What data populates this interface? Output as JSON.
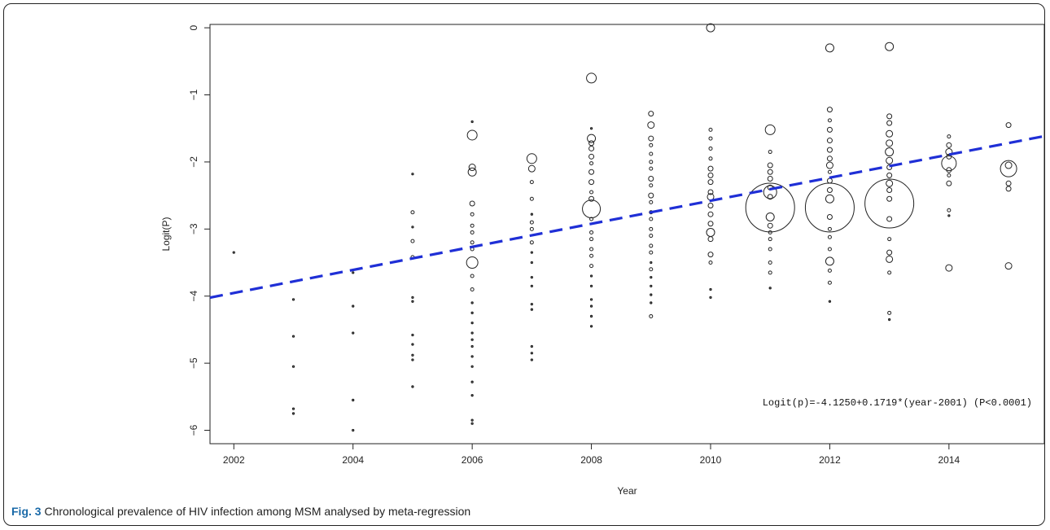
{
  "caption": {
    "label": "Fig. 3",
    "text": "Chronological prevalence of HIV infection among MSM analysed by meta-regression"
  },
  "chart_data": {
    "type": "scatter",
    "title": "",
    "xlabel": "Year",
    "ylabel": "Logit(P)",
    "xlim": [
      2001.6,
      2015.6
    ],
    "ylim": [
      -6.2,
      0.05
    ],
    "x_ticks": [
      2002,
      2004,
      2006,
      2008,
      2010,
      2012,
      2014
    ],
    "y_ticks": [
      0,
      -1,
      -2,
      -3,
      -4,
      -5,
      -6
    ],
    "grid": false,
    "regression": {
      "intercept": -4.125,
      "slope": 0.1719,
      "x_offset": 2001,
      "color": "#1f2fd6",
      "style": "dashed",
      "label": "Logit(p)=-4.1250+0.1719*(year-2001) (P<0.0001)"
    },
    "points": [
      {
        "year": 2002,
        "values": [
          -3.35
        ],
        "sizes": [
          1
        ]
      },
      {
        "year": 2003,
        "values": [
          -4.05,
          -4.6,
          -5.05,
          -5.68,
          -5.75
        ],
        "sizes": [
          1,
          1,
          1,
          1,
          1
        ]
      },
      {
        "year": 2004,
        "values": [
          -3.65,
          -4.15,
          -4.55,
          -5.55,
          -6.0
        ],
        "sizes": [
          1,
          1,
          1,
          1,
          1
        ]
      },
      {
        "year": 2005,
        "values": [
          -2.18,
          -2.75,
          -2.97,
          -3.18,
          -3.42,
          -4.02,
          -4.08,
          -4.58,
          -4.72,
          -4.88,
          -4.95,
          -5.35
        ],
        "sizes": [
          1,
          2,
          1,
          2,
          2,
          1,
          1,
          1,
          1,
          1,
          1,
          1
        ]
      },
      {
        "year": 2006,
        "values": [
          -1.4,
          -1.6,
          -2.08,
          -2.15,
          -2.62,
          -2.78,
          -2.95,
          -3.05,
          -3.2,
          -3.3,
          -3.5,
          -3.7,
          -3.9,
          -4.1,
          -4.25,
          -4.4,
          -4.55,
          -4.65,
          -4.75,
          -4.9,
          -5.05,
          -5.28,
          -5.48,
          -5.85,
          -5.9
        ],
        "sizes": [
          1,
          6,
          4,
          5,
          3,
          2,
          2,
          2,
          2,
          2,
          7,
          2,
          2,
          1,
          1,
          1,
          1,
          1,
          1,
          1,
          1,
          1,
          1,
          1,
          1
        ]
      },
      {
        "year": 2007,
        "values": [
          -1.95,
          -2.1,
          -2.3,
          -2.55,
          -2.78,
          -2.9,
          -3.0,
          -3.2,
          -3.35,
          -3.5,
          -3.72,
          -3.85,
          -4.12,
          -4.2,
          -4.75,
          -4.85,
          -4.95
        ],
        "sizes": [
          6,
          4,
          2,
          2,
          1,
          2,
          2,
          2,
          1,
          1,
          1,
          1,
          1,
          1,
          1,
          1,
          1
        ]
      },
      {
        "year": 2008,
        "values": [
          -0.75,
          -1.5,
          -1.65,
          -1.72,
          -1.8,
          -1.92,
          -2.02,
          -2.15,
          -2.3,
          -2.45,
          -2.55,
          -2.7,
          -2.85,
          -3.05,
          -3.15,
          -3.3,
          -3.4,
          -3.55,
          -3.7,
          -3.85,
          -4.05,
          -4.15,
          -4.3,
          -4.45
        ],
        "sizes": [
          6,
          1,
          5,
          3,
          3,
          3,
          2,
          3,
          3,
          2,
          3,
          11,
          2,
          2,
          2,
          2,
          2,
          2,
          1,
          1,
          1,
          1,
          1,
          1
        ]
      },
      {
        "year": 2009,
        "values": [
          -1.28,
          -1.45,
          -1.65,
          -1.75,
          -1.88,
          -2.0,
          -2.1,
          -2.25,
          -2.35,
          -2.5,
          -2.6,
          -2.75,
          -2.85,
          -3.0,
          -3.1,
          -3.25,
          -3.35,
          -3.5,
          -3.6,
          -3.72,
          -3.85,
          -3.98,
          -4.1,
          -4.3
        ],
        "sizes": [
          3,
          4,
          3,
          2,
          2,
          2,
          2,
          3,
          2,
          3,
          2,
          2,
          2,
          2,
          2,
          2,
          2,
          1,
          2,
          1,
          1,
          1,
          1,
          2
        ]
      },
      {
        "year": 2010,
        "values": [
          0.0,
          -1.52,
          -1.65,
          -1.8,
          -1.95,
          -2.1,
          -2.2,
          -2.3,
          -2.45,
          -2.52,
          -2.65,
          -2.78,
          -2.92,
          -3.05,
          -3.15,
          -3.38,
          -3.5,
          -3.9,
          -4.02
        ],
        "sizes": [
          5,
          2,
          2,
          2,
          2,
          3,
          3,
          3,
          3,
          4,
          3,
          3,
          3,
          5,
          3,
          3,
          2,
          1,
          1
        ]
      },
      {
        "year": 2011,
        "values": [
          -1.52,
          -1.85,
          -2.05,
          -2.15,
          -2.25,
          -2.38,
          -2.45,
          -2.52,
          -2.68,
          -2.82,
          -2.95,
          -3.05,
          -3.15,
          -3.3,
          -3.5,
          -3.65,
          -3.88
        ],
        "sizes": [
          6,
          2,
          3,
          3,
          3,
          3,
          8,
          3,
          30,
          5,
          3,
          2,
          2,
          2,
          2,
          2,
          1
        ]
      },
      {
        "year": 2012,
        "values": [
          -0.3,
          -1.22,
          -1.38,
          -1.52,
          -1.68,
          -1.82,
          -1.95,
          -2.05,
          -2.15,
          -2.28,
          -2.42,
          -2.55,
          -2.68,
          -2.82,
          -3.0,
          -3.12,
          -3.3,
          -3.48,
          -3.62,
          -3.8,
          -4.08
        ],
        "sizes": [
          5,
          3,
          2,
          3,
          3,
          3,
          3,
          4,
          2,
          3,
          3,
          5,
          30,
          3,
          2,
          2,
          2,
          5,
          2,
          2,
          1
        ]
      },
      {
        "year": 2013,
        "values": [
          -0.28,
          -1.32,
          -1.42,
          -1.58,
          -1.72,
          -1.85,
          -1.98,
          -2.08,
          -2.2,
          -2.32,
          -2.42,
          -2.55,
          -2.62,
          -2.85,
          -3.15,
          -3.35,
          -3.45,
          -3.65,
          -4.25,
          -4.35
        ],
        "sizes": [
          5,
          3,
          3,
          4,
          4,
          5,
          4,
          3,
          3,
          4,
          3,
          3,
          30,
          3,
          2,
          3,
          4,
          2,
          2,
          1
        ]
      },
      {
        "year": 2014,
        "values": [
          -1.62,
          -1.75,
          -1.85,
          -1.92,
          -2.02,
          -2.12,
          -2.2,
          -2.32,
          -2.72,
          -2.8,
          -3.58
        ],
        "sizes": [
          2,
          3,
          4,
          3,
          9,
          3,
          2,
          3,
          2,
          1,
          4
        ]
      },
      {
        "year": 2015,
        "values": [
          -1.45,
          -2.05,
          -2.1,
          -2.32,
          -2.4,
          -3.55
        ],
        "sizes": [
          3,
          4,
          10,
          3,
          3,
          4
        ]
      }
    ]
  }
}
